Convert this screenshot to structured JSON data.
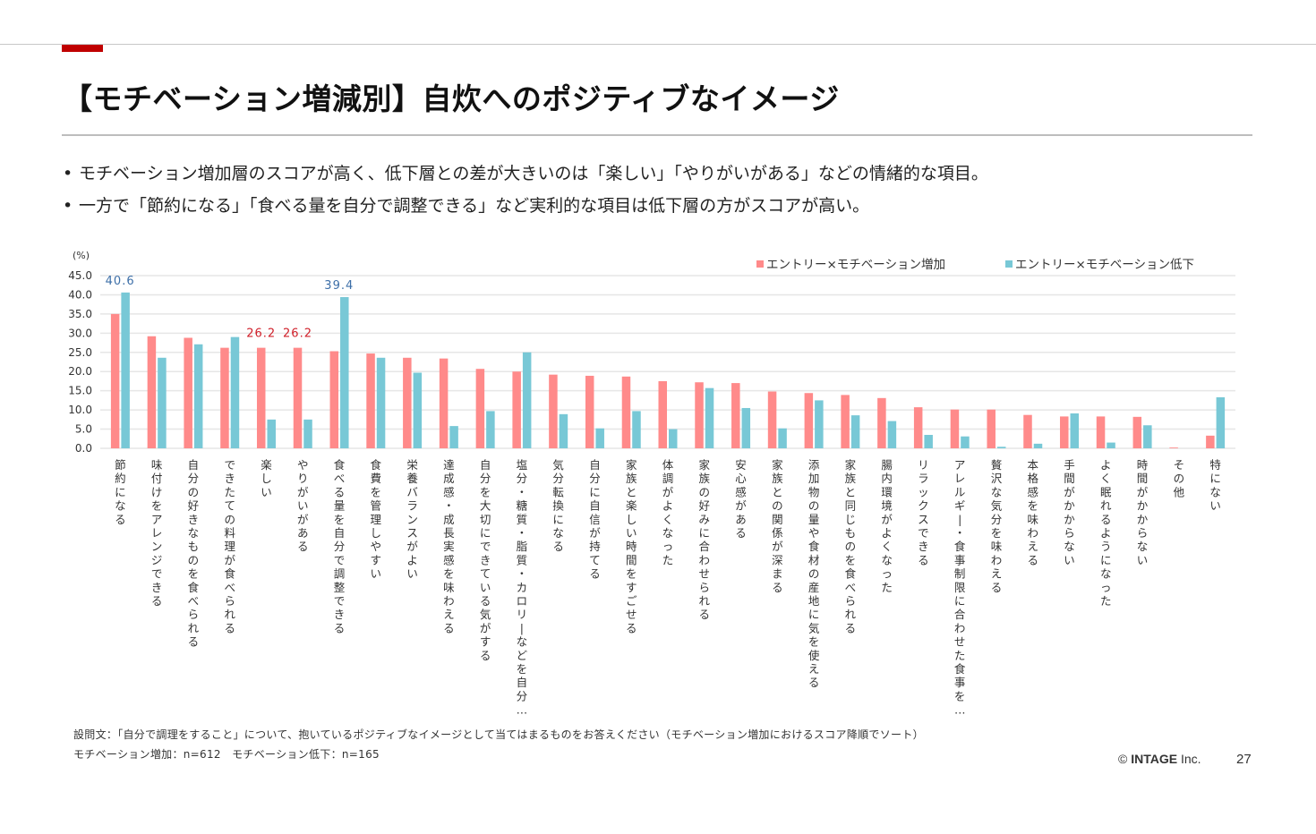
{
  "page": {
    "title": "【モチベーション増減別】自炊へのポジティブなイメージ",
    "bullets": [
      "モチベーション増加層のスコアが高く、低下層との差が大きいのは「楽しい」「やりがいがある」などの情緒的な項目。",
      "一方で「節約になる」「食べる量を自分で調整できる」など実利的な項目は低下層の方がスコアが高い。"
    ],
    "bullet_marker": "•",
    "footnote_question": "設問文：「自分で調理をすること」について、抱いているポジティブなイメージとして当てはまるものをお答えください（モチベーション増加におけるスコア降順でソート）",
    "footnote_sample": "モチベーション増加：n=612　モチベーション低下：n=165",
    "copyright_symbol": "©",
    "copyright_company": "INTAGE",
    "copyright_suffix": "Inc.",
    "page_number": "27"
  },
  "colors": {
    "accent_red": "#c00000",
    "series_increase": "#ff8a8a",
    "series_decrease": "#78c8d6",
    "highlight_label_red": "#d0202a",
    "highlight_label_blue": "#3d6fa8",
    "grid": "#e6e6e6"
  },
  "chart_data": {
    "type": "bar",
    "title": "",
    "xlabel": "",
    "ylabel": "(%)",
    "ylim": [
      0,
      45
    ],
    "yticks": [
      "0.0",
      "5.0",
      "10.0",
      "15.0",
      "20.0",
      "25.0",
      "30.0",
      "35.0",
      "40.0",
      "45.0"
    ],
    "grid": true,
    "legend_position": "top-right",
    "categories": [
      "節約になる",
      "味付けをアレンジできる",
      "自分の好きなものを食べられる",
      "できたての料理が食べられる",
      "楽しい",
      "やりがいがある",
      "食べる量を自分で調整できる",
      "食費を管理しやすい",
      "栄養バランスがよい",
      "達成感・成長実感を味わえる",
      "自分を大切にできている気がする",
      "塩分・糖質・脂質・カロリーなどを自分…",
      "気分転換になる",
      "自分に自信が持てる",
      "家族と楽しい時間をすごせる",
      "体調がよくなった",
      "家族の好みに合わせられる",
      "安心感がある",
      "家族との関係が深まる",
      "添加物の量や食材の産地に気を使える",
      "家族と同じものを食べられる",
      "腸内環境がよくなった",
      "リラックスできる",
      "アレルギー・食事制限に合わせた食事を…",
      "贅沢な気分を味わえる",
      "本格感を味わえる",
      "手間がかからない",
      "よく眠れるようになった",
      "時間がかからない",
      "その他",
      "特にない"
    ],
    "series": [
      {
        "name": "エントリー×モチベーション増加",
        "values": [
          35.0,
          29.2,
          28.8,
          26.2,
          26.2,
          26.2,
          25.3,
          24.7,
          23.6,
          23.4,
          20.7,
          20.0,
          19.2,
          18.9,
          18.7,
          17.5,
          17.2,
          17.0,
          14.8,
          14.4,
          13.9,
          13.1,
          10.7,
          10.1,
          10.1,
          8.7,
          8.3,
          8.3,
          8.2,
          0.2,
          3.3
        ]
      },
      {
        "name": "エントリー×モチベーション低下",
        "values": [
          40.6,
          23.6,
          27.1,
          29.0,
          7.5,
          7.5,
          39.4,
          23.6,
          19.7,
          5.8,
          9.7,
          25.0,
          8.9,
          5.2,
          9.7,
          5.0,
          15.7,
          10.5,
          5.2,
          12.5,
          8.6,
          7.1,
          3.5,
          3.1,
          0.4,
          1.2,
          9.1,
          1.5,
          6.0,
          0.0,
          13.3
        ]
      }
    ],
    "annotations": [
      {
        "category_index": 0,
        "series": 1,
        "text": "40.6"
      },
      {
        "category_index": 4,
        "series": 0,
        "text": "26.2"
      },
      {
        "category_index": 5,
        "series": 0,
        "text": "26.2"
      },
      {
        "category_index": 6,
        "series": 1,
        "text": "39.4"
      }
    ]
  }
}
